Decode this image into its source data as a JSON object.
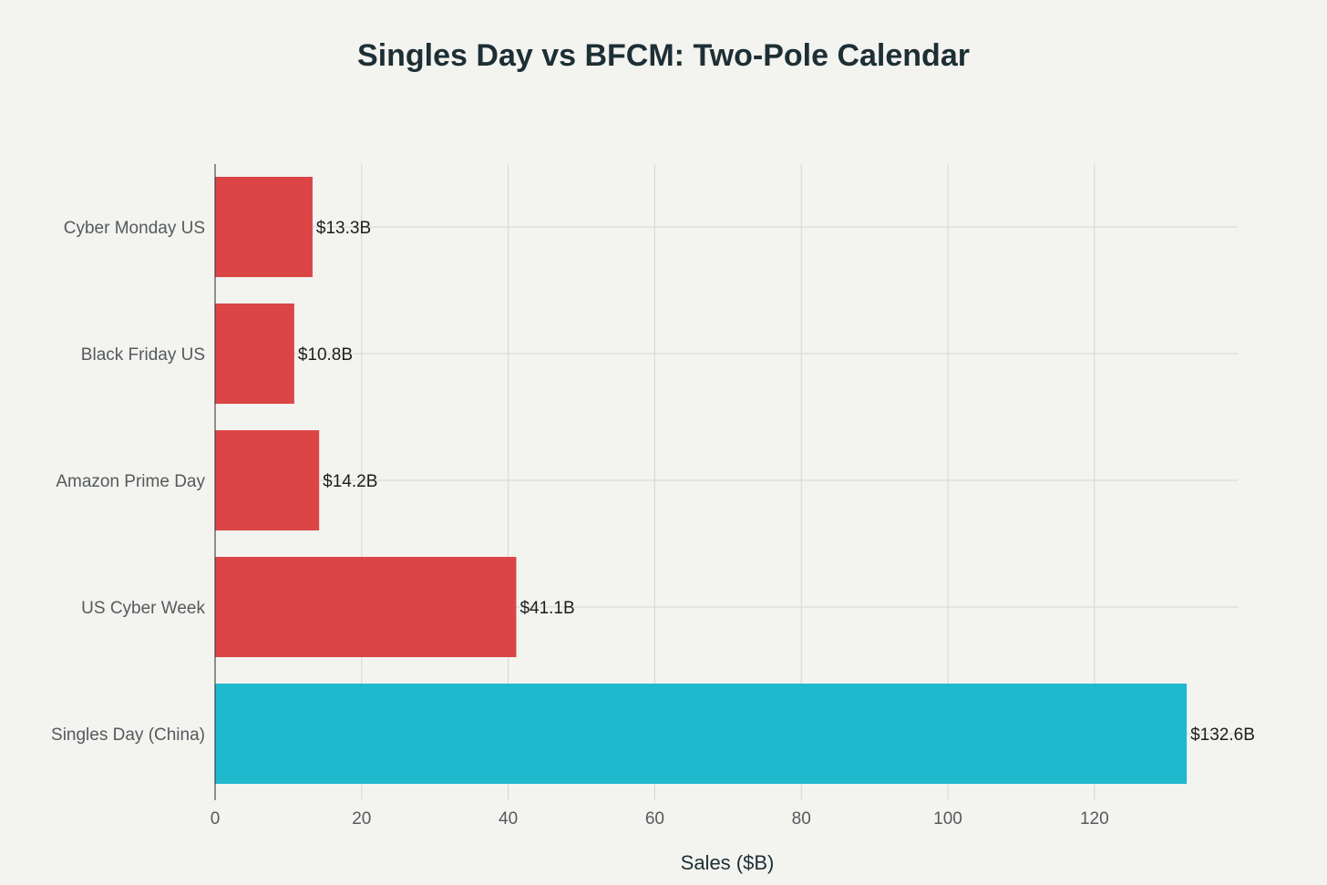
{
  "chart_data": {
    "type": "bar",
    "orientation": "horizontal",
    "title": "Singles Day vs BFCM: Two-Pole Calendar",
    "xlabel": "Sales ($B)",
    "ylabel": "",
    "xlim": [
      0,
      140
    ],
    "xticks": [
      0,
      20,
      40,
      60,
      80,
      100,
      120
    ],
    "xtick_labels": [
      "0",
      "20",
      "40",
      "60",
      "80",
      "100",
      "120"
    ],
    "grid": true,
    "legend": "none",
    "categories": [
      "Cyber Monday US",
      "Black Friday US",
      "Amazon Prime Day",
      "US Cyber Week",
      "Singles Day (China)"
    ],
    "values": [
      13.3,
      10.8,
      14.2,
      41.1,
      132.6
    ],
    "data_labels": [
      "$13.3B",
      "$10.8B",
      "$14.2B",
      "$41.1B",
      "$132.6B"
    ],
    "colors": [
      "#db4545",
      "#db4545",
      "#db4545",
      "#db4545",
      "#1fb8cd"
    ]
  }
}
